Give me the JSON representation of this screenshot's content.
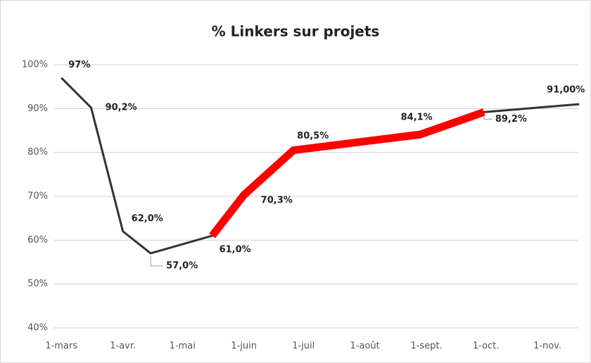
{
  "chart_data": {
    "type": "line",
    "title": "% Linkers sur projets",
    "x": [
      0,
      15,
      31,
      45,
      76,
      92,
      117,
      181,
      213,
      261
    ],
    "xlim": [
      -4,
      262
    ],
    "xticks": [
      {
        "value": 0,
        "label": "1-mars"
      },
      {
        "value": 31,
        "label": "1-avr."
      },
      {
        "value": 61,
        "label": "1-mai"
      },
      {
        "value": 92,
        "label": "1-juin"
      },
      {
        "value": 122,
        "label": "1-juil"
      },
      {
        "value": 153,
        "label": "1-août"
      },
      {
        "value": 184,
        "label": "1-sept."
      },
      {
        "value": 214,
        "label": "1-oct."
      },
      {
        "value": 245,
        "label": "1-nov."
      }
    ],
    "ylim": [
      40,
      100
    ],
    "yticks": [
      {
        "value": 40,
        "label": "40%"
      },
      {
        "value": 50,
        "label": "50%"
      },
      {
        "value": 60,
        "label": "60%"
      },
      {
        "value": 70,
        "label": "70%"
      },
      {
        "value": 80,
        "label": "80%"
      },
      {
        "value": 90,
        "label": "90%"
      },
      {
        "value": 100,
        "label": "100%"
      }
    ],
    "grid": true,
    "series": [
      {
        "color": "#333333",
        "values": [
          97,
          90.2,
          62.0,
          57.0,
          61.0,
          70.3,
          80.5,
          84.1,
          89.2,
          91.0
        ],
        "value_labels": [
          "97%",
          "90,2%",
          "62,0%",
          "57,0%",
          "61,0%",
          "70,3%",
          "80,5%",
          "84,1%",
          "89,2%",
          "91,00%"
        ]
      },
      {
        "color": "#ff0000",
        "values": [
          null,
          null,
          null,
          null,
          61.0,
          70.3,
          80.5,
          84.1,
          89.2,
          null
        ]
      }
    ]
  }
}
